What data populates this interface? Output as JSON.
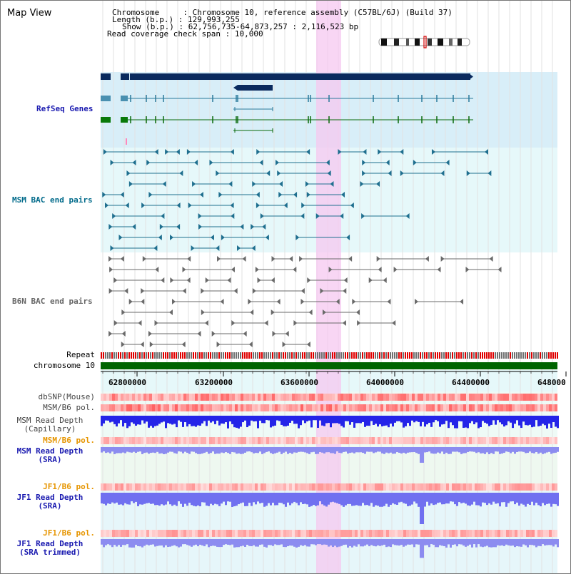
{
  "header": {
    "title": "Map View",
    "chromosome_label": "Chromosome",
    "chromosome_value": "Chromosome 10, reference assembly (C57BL/6J) (Build 37)",
    "length_label": "Length (b.p.)",
    "length_value": "129,993,255",
    "show_label": "Show (b.p.)",
    "show_value": "62,756,735-64,873,257 : 2,116,523 bp",
    "span_label": "Read coverage check span",
    "span_value": "10,000",
    "sep": " : "
  },
  "tracks": {
    "refseq": "RefSeq Genes",
    "msm_bac": "MSM BAC end pairs",
    "b6n_bac": "B6N BAC end pairs",
    "repeat": "Repeat",
    "chromosome": "chromosome 10",
    "dbsnp": "dbSNP(Mouse)",
    "msm_b6_pol_1": "MSM/B6 pol.",
    "msm_depth_cap_1": "MSM Read Depth",
    "msm_depth_cap_2": "(Capillary)",
    "msm_b6_pol_2": "MSM/B6 pol.",
    "msm_depth_sra_1": "MSM Read Depth",
    "msm_depth_sra_2": "(SRA)",
    "jf1_b6_pol_1": "JF1/B6 pol.",
    "jf1_depth_sra_1": "JF1 Read Depth",
    "jf1_depth_sra_2": "(SRA)",
    "jf1_b6_pol_2": "JF1/B6 pol.",
    "jf1_depth_trim_1": "JF1 Read Depth",
    "jf1_depth_trim_2": "(SRA trimmed)"
  },
  "axis": {
    "ticks": [
      "62800000",
      "63200000",
      "63600000",
      "64000000",
      "64400000",
      "648000"
    ]
  },
  "colors": {
    "refseq_label": "#00008b",
    "msm_bac_label": "#006a8a",
    "b6n_bac_label": "#555555",
    "orange_label": "#e69500",
    "blue_label": "#00008b",
    "highlight": "#f5c8f0",
    "chromosome_bar": "#006400",
    "repeat_red": "#e00000",
    "repeat_gray": "#707070",
    "depth_blue": "#2020e8",
    "depth_light_blue": "#8080f0"
  }
}
